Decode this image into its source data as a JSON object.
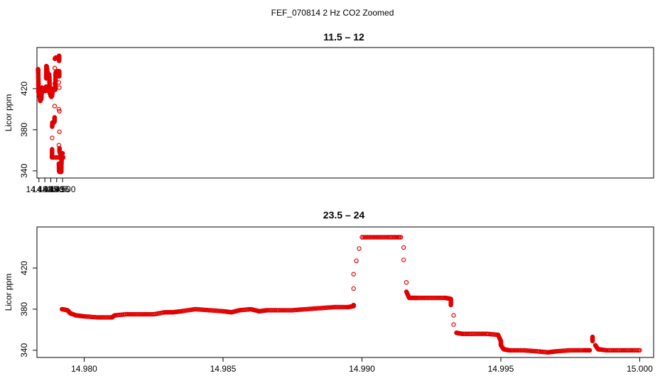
{
  "figure": {
    "suptitle": "FEF_070814  2 Hz CO2 Zoomed",
    "marker_color": "#e00000"
  },
  "chart_data": [
    {
      "type": "scatter",
      "title": "11.5 – 12",
      "xlabel": "",
      "ylabel": "Licor ppm",
      "xlim": [
        14.4783,
        15.0005
      ],
      "ylim": [
        333,
        460
      ],
      "xticks": [
        14.48,
        14.485,
        14.49,
        14.495,
        14.5
      ],
      "xtick_labels": [
        "14.480",
        "14.485",
        "14.490",
        "14.495",
        "14.500"
      ],
      "yticks": [
        340,
        380,
        420
      ],
      "ytick_labels": [
        "340",
        "380",
        "420"
      ],
      "grid": false,
      "legend": "none",
      "series_points": [
        [
          14.4792,
          439
        ],
        [
          14.4794,
          436
        ],
        [
          14.4795,
          429
        ],
        [
          14.4796,
          422
        ],
        [
          14.4797,
          418
        ],
        [
          14.4798,
          416
        ],
        [
          14.48,
          415
        ],
        [
          14.4805,
          413
        ],
        [
          14.4808,
          411
        ],
        [
          14.4811,
          408
        ],
        [
          14.4813,
          409
        ],
        [
          14.4816,
          411
        ],
        [
          14.4818,
          411
        ],
        [
          14.482,
          410
        ],
        [
          14.4821,
          411
        ],
        [
          14.4822,
          415
        ],
        [
          14.4823,
          419
        ],
        [
          14.4825,
          421
        ],
        [
          14.483,
          420
        ],
        [
          14.4835,
          419
        ],
        [
          14.484,
          418
        ],
        [
          14.4845,
          418
        ],
        [
          14.485,
          418
        ],
        [
          14.4855,
          418
        ],
        [
          14.4859,
          418
        ],
        [
          14.486,
          422
        ],
        [
          14.4861,
          430
        ],
        [
          14.4862,
          437
        ],
        [
          14.4863,
          442
        ],
        [
          14.4866,
          441
        ],
        [
          14.487,
          437
        ],
        [
          14.4874,
          434
        ],
        [
          14.4878,
          432
        ],
        [
          14.4881,
          433
        ],
        [
          14.4884,
          432
        ],
        [
          14.4886,
          434
        ],
        [
          14.4888,
          431
        ],
        [
          14.4889,
          426
        ],
        [
          14.489,
          421
        ],
        [
          14.4891,
          416
        ],
        [
          14.4895,
          415
        ],
        [
          14.49,
          413
        ],
        [
          14.4905,
          412
        ],
        [
          14.491,
          413
        ],
        [
          14.4912,
          414
        ],
        [
          14.4914,
          418
        ],
        [
          14.4918,
          419
        ],
        [
          14.4922,
          420
        ],
        [
          14.4927,
          420
        ],
        [
          14.4932,
          419
        ],
        [
          14.4938,
          419
        ],
        [
          14.4939,
          422
        ],
        [
          14.494,
          428
        ],
        [
          14.4941,
          434
        ],
        [
          14.4943,
          436
        ],
        [
          14.495,
          436
        ],
        [
          14.4956,
          436
        ],
        [
          14.496,
          437
        ],
        [
          14.4965,
          436
        ],
        [
          14.4967,
          436
        ],
        [
          14.4968,
          426
        ],
        [
          14.4968,
          400
        ],
        [
          14.4969,
          365
        ],
        [
          14.4969,
          347
        ],
        [
          14.497,
          340
        ],
        [
          14.4975,
          339
        ],
        [
          14.498,
          339
        ],
        [
          14.4985,
          339
        ],
        [
          14.4988,
          339
        ],
        [
          14.4989,
          341
        ],
        [
          14.499,
          345
        ],
        [
          14.4991,
          350
        ],
        [
          14.4993,
          353
        ],
        [
          14.4998,
          353
        ],
        [
          14.5,
          353
        ],
        [
          14.5005,
          353
        ],
        [
          14.501,
          353
        ],
        [
          14.5011,
          355
        ],
        [
          14.5011,
          361
        ],
        [
          14.5012,
          372
        ],
        [
          14.5012,
          383
        ],
        [
          14.5014,
          387
        ],
        [
          14.502,
          387
        ],
        [
          14.5025,
          387
        ],
        [
          14.503,
          388
        ],
        [
          14.5032,
          388
        ],
        [
          14.5033,
          392
        ],
        [
          14.5033,
          403
        ],
        [
          14.5034,
          425
        ],
        [
          14.5034,
          440
        ],
        [
          14.5035,
          449
        ],
        [
          14.504,
          450
        ],
        [
          14.5045,
          450
        ],
        [
          14.505,
          450
        ],
        [
          14.5055,
          450
        ],
        [
          14.506,
          450
        ],
        [
          14.5065,
          450
        ],
        [
          14.5068,
          449
        ],
        [
          14.5069,
          450
        ],
        [
          14.507,
          452
        ],
        [
          14.5071,
          447
        ],
        [
          14.5071,
          437
        ],
        [
          14.5072,
          432
        ],
        [
          14.5072,
          421
        ],
        [
          14.5073,
          398
        ],
        [
          14.5073,
          378
        ],
        [
          14.5074,
          362
        ],
        [
          14.5076,
          358
        ],
        [
          14.508,
          357
        ],
        [
          14.5085,
          357
        ],
        [
          14.509,
          357
        ],
        [
          14.5095,
          357
        ],
        [
          14.51,
          357
        ]
      ],
      "series_x_offset_note": ""
    },
    {
      "type": "scatter",
      "title": "23.5 – 24",
      "xlabel": "",
      "ylabel": "Licor ppm",
      "xlim": [
        14.9783,
        15.0005
      ],
      "ylim": [
        333,
        460
      ],
      "xticks": [
        14.98,
        14.985,
        14.99,
        14.995,
        15.0
      ],
      "xtick_labels": [
        "14.980",
        "14.985",
        "14.990",
        "14.995",
        "15.000"
      ],
      "yticks": [
        340,
        380,
        420
      ],
      "ytick_labels": [
        "340",
        "380",
        "420"
      ],
      "grid": false,
      "legend": "none",
      "series_points": [
        [
          14.9792,
          380
        ],
        [
          14.9794,
          379
        ],
        [
          14.9795,
          376
        ],
        [
          14.9797,
          374
        ],
        [
          14.98,
          373
        ],
        [
          14.9805,
          372
        ],
        [
          14.981,
          372
        ],
        [
          14.9811,
          374
        ],
        [
          14.9815,
          375
        ],
        [
          14.982,
          375
        ],
        [
          14.9825,
          375
        ],
        [
          14.9829,
          377
        ],
        [
          14.9832,
          377
        ],
        [
          14.9835,
          378
        ],
        [
          14.984,
          380
        ],
        [
          14.9845,
          379
        ],
        [
          14.985,
          378
        ],
        [
          14.9853,
          377
        ],
        [
          14.9856,
          379
        ],
        [
          14.986,
          380
        ],
        [
          14.9863,
          378
        ],
        [
          14.9866,
          379
        ],
        [
          14.987,
          379
        ],
        [
          14.9875,
          379
        ],
        [
          14.988,
          380
        ],
        [
          14.9885,
          381
        ],
        [
          14.989,
          382
        ],
        [
          14.9895,
          382
        ],
        [
          14.9897,
          383
        ],
        [
          14.9897,
          384
        ],
        [
          14.9897,
          400
        ],
        [
          14.9897,
          414
        ],
        [
          14.9898,
          427
        ],
        [
          14.9899,
          439
        ],
        [
          14.99,
          450
        ],
        [
          14.9905,
          450
        ],
        [
          14.991,
          450
        ],
        [
          14.9914,
          450
        ],
        [
          14.9915,
          440
        ],
        [
          14.9915,
          428
        ],
        [
          14.9916,
          406
        ],
        [
          14.9916,
          397
        ],
        [
          14.9917,
          391
        ],
        [
          14.992,
          391
        ],
        [
          14.9925,
          391
        ],
        [
          14.993,
          391
        ],
        [
          14.9932,
          390
        ],
        [
          14.9932,
          384
        ],
        [
          14.9933,
          374
        ],
        [
          14.9933,
          365
        ],
        [
          14.9934,
          357
        ],
        [
          14.9936,
          356
        ],
        [
          14.994,
          356
        ],
        [
          14.9945,
          356
        ],
        [
          14.9949,
          355
        ],
        [
          14.995,
          349
        ],
        [
          14.995,
          345
        ],
        [
          14.9951,
          341
        ],
        [
          14.9953,
          340
        ],
        [
          14.9958,
          340
        ],
        [
          14.9963,
          339
        ],
        [
          14.9967,
          338
        ],
        [
          14.997,
          339
        ],
        [
          14.9975,
          340
        ],
        [
          14.998,
          340
        ],
        [
          14.9982,
          340
        ],
        [
          14.9983,
          349
        ],
        [
          14.9983,
          353
        ],
        [
          14.9984,
          345
        ],
        [
          14.9985,
          341
        ],
        [
          14.9988,
          340
        ],
        [
          14.9992,
          340
        ],
        [
          14.9996,
          340
        ],
        [
          15.0,
          340
        ]
      ],
      "series_x_offset_note": ""
    }
  ]
}
